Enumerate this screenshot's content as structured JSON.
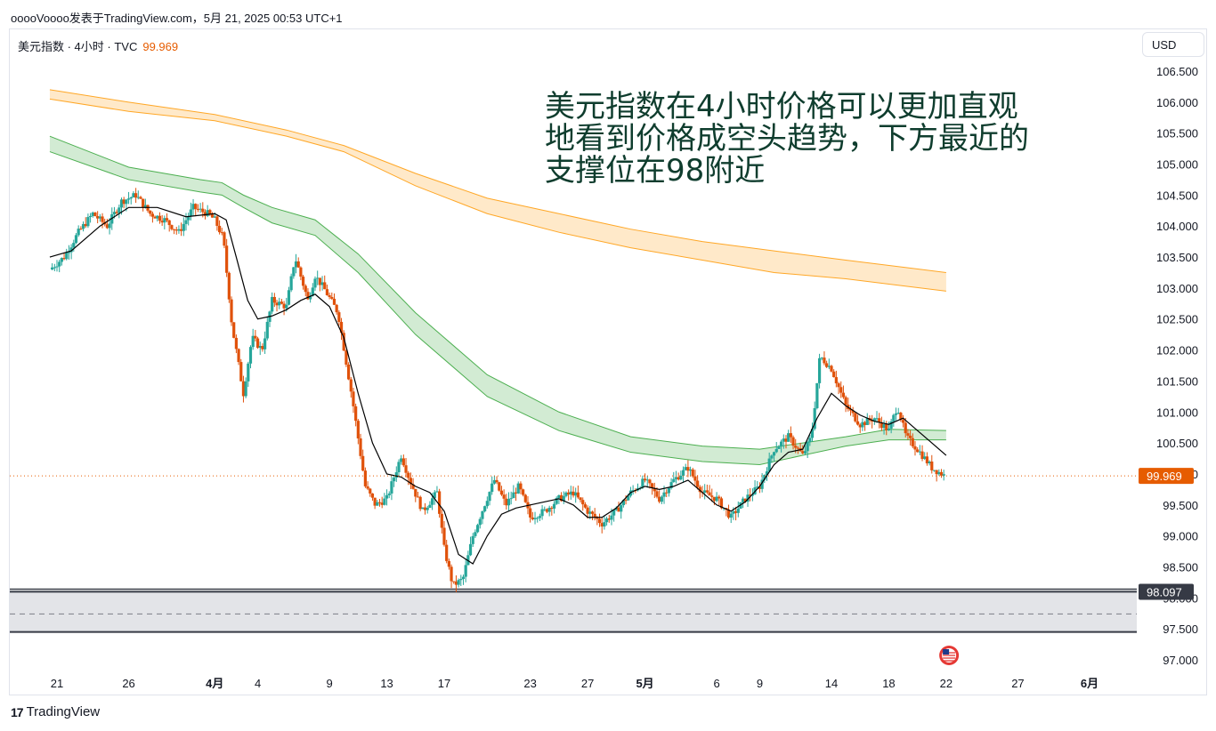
{
  "header": {
    "text": "ooooVoooo发表于TradingView.com，5月 21, 2025 00:53 UTC+1"
  },
  "legend": {
    "symbol": "美元指数 · 4小时 · TVC",
    "price": "99.969"
  },
  "currency_button": "USD",
  "annotation": "美元指数在4小时价格可以更加直观地看到价格成空头趋势，下方最近的支撑位在98附近",
  "footer": {
    "brand": "TradingView",
    "mark": "17"
  },
  "colors": {
    "up": "#26a69a",
    "down": "#e0510a",
    "ema_fast": "#000000",
    "band_green": "#4caf50",
    "band_orange": "#ffa726",
    "price_line": "#e65c00"
  },
  "chart_data": {
    "type": "candlestick",
    "title": "美元指数 · 4小时 · TVC",
    "ylim": [
      96.85,
      107.0
    ],
    "y_ticks": [
      "106.500",
      "106.000",
      "105.500",
      "105.000",
      "104.500",
      "104.000",
      "103.500",
      "103.000",
      "102.500",
      "102.000",
      "101.500",
      "101.000",
      "100.500",
      "100.000",
      "99.500",
      "99.000",
      "98.500",
      "98.000",
      "97.500",
      "97.000"
    ],
    "x_ticks": [
      {
        "label": "21",
        "i": 0
      },
      {
        "label": "26",
        "i": 5
      },
      {
        "label": "4月",
        "i": 11,
        "bold": true
      },
      {
        "label": "4",
        "i": 14
      },
      {
        "label": "9",
        "i": 19
      },
      {
        "label": "13",
        "i": 23
      },
      {
        "label": "17",
        "i": 27
      },
      {
        "label": "23",
        "i": 33
      },
      {
        "label": "27",
        "i": 37
      },
      {
        "label": "5月",
        "i": 41,
        "bold": true
      },
      {
        "label": "6",
        "i": 46
      },
      {
        "label": "9",
        "i": 49
      },
      {
        "label": "14",
        "i": 54
      },
      {
        "label": "18",
        "i": 58
      },
      {
        "label": "22",
        "i": 62
      },
      {
        "label": "27",
        "i": 67
      },
      {
        "label": "6月",
        "i": 72,
        "bold": true
      }
    ],
    "x_last_index": 76,
    "last_price": 99.969,
    "support_level": 98.097,
    "support_zone": [
      97.45,
      98.1
    ],
    "support_dashed": 97.74,
    "daily_path": [
      {
        "t": -0.5,
        "v": 103.3
      },
      {
        "t": 0.5,
        "v": 103.5
      },
      {
        "t": 1.5,
        "v": 103.9
      },
      {
        "t": 2.5,
        "v": 104.2
      },
      {
        "t": 3.5,
        "v": 104.0
      },
      {
        "t": 4.5,
        "v": 104.4
      },
      {
        "t": 5.5,
        "v": 104.5
      },
      {
        "t": 6.5,
        "v": 104.2
      },
      {
        "t": 7.5,
        "v": 104.1
      },
      {
        "t": 8.5,
        "v": 103.9
      },
      {
        "t": 9.5,
        "v": 104.3
      },
      {
        "t": 10.5,
        "v": 104.2
      },
      {
        "t": 11.0,
        "v": 104.1
      },
      {
        "t": 11.6,
        "v": 103.8
      },
      {
        "t": 12.2,
        "v": 102.4
      },
      {
        "t": 13.0,
        "v": 101.3
      },
      {
        "t": 13.6,
        "v": 102.2
      },
      {
        "t": 14.3,
        "v": 102.0
      },
      {
        "t": 15.0,
        "v": 102.8
      },
      {
        "t": 16.0,
        "v": 102.7
      },
      {
        "t": 16.6,
        "v": 103.5
      },
      {
        "t": 17.5,
        "v": 102.8
      },
      {
        "t": 18.0,
        "v": 103.2
      },
      {
        "t": 18.6,
        "v": 103.0
      },
      {
        "t": 19.6,
        "v": 102.6
      },
      {
        "t": 20.6,
        "v": 101.2
      },
      {
        "t": 21.5,
        "v": 99.8
      },
      {
        "t": 22.2,
        "v": 99.5
      },
      {
        "t": 23.0,
        "v": 99.6
      },
      {
        "t": 24.0,
        "v": 100.3
      },
      {
        "t": 24.6,
        "v": 99.9
      },
      {
        "t": 25.5,
        "v": 99.4
      },
      {
        "t": 26.5,
        "v": 99.7
      },
      {
        "t": 27.0,
        "v": 98.8
      },
      {
        "t": 27.6,
        "v": 98.2
      },
      {
        "t": 28.3,
        "v": 98.3
      },
      {
        "t": 29.0,
        "v": 99.0
      },
      {
        "t": 29.8,
        "v": 99.5
      },
      {
        "t": 30.5,
        "v": 99.9
      },
      {
        "t": 31.3,
        "v": 99.5
      },
      {
        "t": 32.2,
        "v": 99.8
      },
      {
        "t": 33.0,
        "v": 99.3
      },
      {
        "t": 34.0,
        "v": 99.4
      },
      {
        "t": 35.0,
        "v": 99.6
      },
      {
        "t": 36.0,
        "v": 99.7
      },
      {
        "t": 37.0,
        "v": 99.4
      },
      {
        "t": 38.0,
        "v": 99.2
      },
      {
        "t": 39.0,
        "v": 99.4
      },
      {
        "t": 40.0,
        "v": 99.7
      },
      {
        "t": 41.0,
        "v": 99.9
      },
      {
        "t": 42.0,
        "v": 99.6
      },
      {
        "t": 43.0,
        "v": 99.9
      },
      {
        "t": 44.0,
        "v": 100.1
      },
      {
        "t": 45.0,
        "v": 99.7
      },
      {
        "t": 46.0,
        "v": 99.6
      },
      {
        "t": 47.0,
        "v": 99.3
      },
      {
        "t": 48.0,
        "v": 99.6
      },
      {
        "t": 49.0,
        "v": 99.8
      },
      {
        "t": 50.0,
        "v": 100.4
      },
      {
        "t": 51.0,
        "v": 100.6
      },
      {
        "t": 52.0,
        "v": 100.3
      },
      {
        "t": 52.6,
        "v": 100.6
      },
      {
        "t": 53.2,
        "v": 101.9
      },
      {
        "t": 54.0,
        "v": 101.7
      },
      {
        "t": 55.0,
        "v": 101.1
      },
      {
        "t": 56.0,
        "v": 100.8
      },
      {
        "t": 57.0,
        "v": 100.9
      },
      {
        "t": 58.0,
        "v": 100.7
      },
      {
        "t": 58.6,
        "v": 101.1
      },
      {
        "t": 59.2,
        "v": 100.6
      },
      {
        "t": 60.0,
        "v": 100.4
      },
      {
        "t": 61.0,
        "v": 100.1
      },
      {
        "t": 61.9,
        "v": 99.97
      }
    ],
    "series": [
      {
        "name": "EMA",
        "kind": "line",
        "points": [
          {
            "t": -0.5,
            "v": 103.5
          },
          {
            "t": 1.0,
            "v": 103.6
          },
          {
            "t": 3.0,
            "v": 104.0
          },
          {
            "t": 5.0,
            "v": 104.3
          },
          {
            "t": 7.0,
            "v": 104.3
          },
          {
            "t": 9.0,
            "v": 104.15
          },
          {
            "t": 11.0,
            "v": 104.2
          },
          {
            "t": 11.8,
            "v": 104.1
          },
          {
            "t": 12.5,
            "v": 103.5
          },
          {
            "t": 13.3,
            "v": 102.8
          },
          {
            "t": 14.0,
            "v": 102.5
          },
          {
            "t": 15.0,
            "v": 102.55
          },
          {
            "t": 16.0,
            "v": 102.65
          },
          {
            "t": 17.0,
            "v": 102.8
          },
          {
            "t": 18.0,
            "v": 102.9
          },
          {
            "t": 19.0,
            "v": 102.7
          },
          {
            "t": 20.0,
            "v": 102.2
          },
          {
            "t": 21.0,
            "v": 101.3
          },
          {
            "t": 22.0,
            "v": 100.5
          },
          {
            "t": 23.0,
            "v": 100.0
          },
          {
            "t": 24.0,
            "v": 99.95
          },
          {
            "t": 25.0,
            "v": 99.8
          },
          {
            "t": 26.0,
            "v": 99.7
          },
          {
            "t": 27.0,
            "v": 99.4
          },
          {
            "t": 28.0,
            "v": 98.7
          },
          {
            "t": 29.0,
            "v": 98.55
          },
          {
            "t": 30.0,
            "v": 99.0
          },
          {
            "t": 31.0,
            "v": 99.35
          },
          {
            "t": 32.0,
            "v": 99.45
          },
          {
            "t": 33.0,
            "v": 99.5
          },
          {
            "t": 34.0,
            "v": 99.55
          },
          {
            "t": 35.0,
            "v": 99.6
          },
          {
            "t": 36.0,
            "v": 99.5
          },
          {
            "t": 37.0,
            "v": 99.3
          },
          {
            "t": 38.0,
            "v": 99.3
          },
          {
            "t": 39.0,
            "v": 99.45
          },
          {
            "t": 40.0,
            "v": 99.7
          },
          {
            "t": 41.0,
            "v": 99.8
          },
          {
            "t": 42.0,
            "v": 99.75
          },
          {
            "t": 43.0,
            "v": 99.8
          },
          {
            "t": 44.0,
            "v": 99.9
          },
          {
            "t": 45.0,
            "v": 99.7
          },
          {
            "t": 46.0,
            "v": 99.5
          },
          {
            "t": 47.0,
            "v": 99.4
          },
          {
            "t": 48.0,
            "v": 99.55
          },
          {
            "t": 49.0,
            "v": 99.8
          },
          {
            "t": 50.0,
            "v": 100.15
          },
          {
            "t": 51.0,
            "v": 100.35
          },
          {
            "t": 52.0,
            "v": 100.4
          },
          {
            "t": 53.0,
            "v": 100.9
          },
          {
            "t": 54.0,
            "v": 101.3
          },
          {
            "t": 55.0,
            "v": 101.1
          },
          {
            "t": 56.0,
            "v": 100.95
          },
          {
            "t": 57.0,
            "v": 100.85
          },
          {
            "t": 58.0,
            "v": 100.8
          },
          {
            "t": 59.0,
            "v": 100.9
          },
          {
            "t": 60.0,
            "v": 100.7
          },
          {
            "t": 61.0,
            "v": 100.5
          },
          {
            "t": 62.0,
            "v": 100.3
          }
        ]
      },
      {
        "name": "EMA Band (green)",
        "kind": "band",
        "upper": [
          {
            "t": -0.5,
            "v": 105.45
          },
          {
            "t": 5.0,
            "v": 104.95
          },
          {
            "t": 10.0,
            "v": 104.75
          },
          {
            "t": 11.5,
            "v": 104.7
          },
          {
            "t": 13.0,
            "v": 104.5
          },
          {
            "t": 15.0,
            "v": 104.3
          },
          {
            "t": 18.0,
            "v": 104.1
          },
          {
            "t": 21.0,
            "v": 103.55
          },
          {
            "t": 25.0,
            "v": 102.6
          },
          {
            "t": 30.0,
            "v": 101.6
          },
          {
            "t": 35.0,
            "v": 101.0
          },
          {
            "t": 40.0,
            "v": 100.6
          },
          {
            "t": 45.0,
            "v": 100.45
          },
          {
            "t": 49.0,
            "v": 100.4
          },
          {
            "t": 52.0,
            "v": 100.5
          },
          {
            "t": 55.0,
            "v": 100.6
          },
          {
            "t": 58.0,
            "v": 100.72
          },
          {
            "t": 62.0,
            "v": 100.7
          }
        ],
        "lower": [
          {
            "t": -0.5,
            "v": 105.2
          },
          {
            "t": 5.0,
            "v": 104.75
          },
          {
            "t": 10.0,
            "v": 104.55
          },
          {
            "t": 11.5,
            "v": 104.5
          },
          {
            "t": 13.0,
            "v": 104.3
          },
          {
            "t": 15.0,
            "v": 104.05
          },
          {
            "t": 18.0,
            "v": 103.85
          },
          {
            "t": 21.0,
            "v": 103.25
          },
          {
            "t": 25.0,
            "v": 102.25
          },
          {
            "t": 30.0,
            "v": 101.25
          },
          {
            "t": 35.0,
            "v": 100.7
          },
          {
            "t": 40.0,
            "v": 100.35
          },
          {
            "t": 45.0,
            "v": 100.2
          },
          {
            "t": 49.0,
            "v": 100.15
          },
          {
            "t": 52.0,
            "v": 100.3
          },
          {
            "t": 55.0,
            "v": 100.45
          },
          {
            "t": 58.0,
            "v": 100.55
          },
          {
            "t": 62.0,
            "v": 100.55
          }
        ]
      },
      {
        "name": "EMA Band (orange)",
        "kind": "band",
        "upper": [
          {
            "t": -0.5,
            "v": 106.2
          },
          {
            "t": 5.0,
            "v": 106.0
          },
          {
            "t": 11.0,
            "v": 105.8
          },
          {
            "t": 16.0,
            "v": 105.55
          },
          {
            "t": 20.0,
            "v": 105.3
          },
          {
            "t": 25.0,
            "v": 104.85
          },
          {
            "t": 30.0,
            "v": 104.45
          },
          {
            "t": 35.0,
            "v": 104.2
          },
          {
            "t": 40.0,
            "v": 103.95
          },
          {
            "t": 45.0,
            "v": 103.75
          },
          {
            "t": 50.0,
            "v": 103.6
          },
          {
            "t": 55.0,
            "v": 103.45
          },
          {
            "t": 62.0,
            "v": 103.25
          }
        ],
        "lower": [
          {
            "t": -0.5,
            "v": 106.05
          },
          {
            "t": 5.0,
            "v": 105.85
          },
          {
            "t": 11.0,
            "v": 105.7
          },
          {
            "t": 16.0,
            "v": 105.45
          },
          {
            "t": 20.0,
            "v": 105.2
          },
          {
            "t": 25.0,
            "v": 104.65
          },
          {
            "t": 30.0,
            "v": 104.2
          },
          {
            "t": 35.0,
            "v": 103.9
          },
          {
            "t": 40.0,
            "v": 103.65
          },
          {
            "t": 45.0,
            "v": 103.45
          },
          {
            "t": 50.0,
            "v": 103.25
          },
          {
            "t": 55.0,
            "v": 103.15
          },
          {
            "t": 62.0,
            "v": 102.95
          }
        ]
      }
    ]
  }
}
